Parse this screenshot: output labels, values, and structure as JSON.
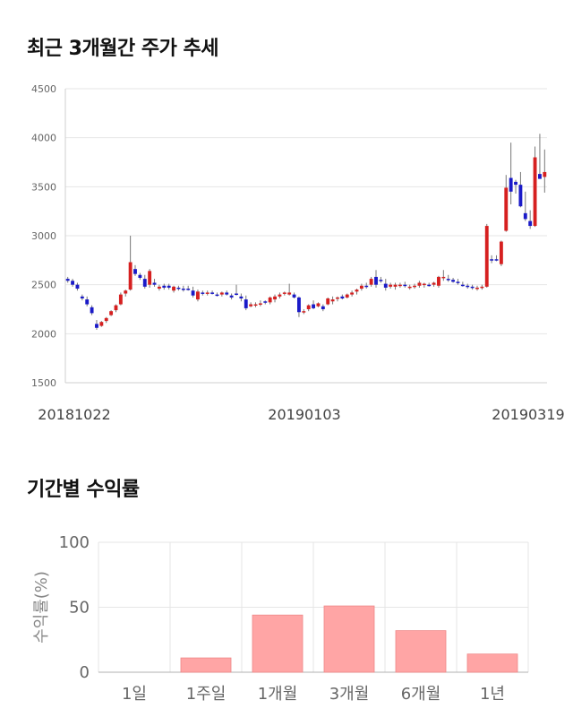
{
  "titles": {
    "price_trend": "최근 3개월간 주가 추세",
    "returns": "기간별 수익률"
  },
  "colors": {
    "up": "#d62020",
    "down": "#1a1ac8",
    "bar": "#ffa5a5",
    "grid": "#e6e6e6"
  },
  "chart_data": [
    {
      "type": "candlestick",
      "title": "최근 3개월간 주가 추세",
      "ylim": [
        1500,
        4500
      ],
      "yticks": [
        1500,
        2000,
        2500,
        3000,
        3500,
        4000,
        4500
      ],
      "x_labels": [
        "20181022",
        "20190103",
        "20190319"
      ],
      "grid": true,
      "candles": [
        [
          2560,
          2580,
          2520,
          2540
        ],
        [
          2540,
          2560,
          2480,
          2500
        ],
        [
          2500,
          2520,
          2440,
          2460
        ],
        [
          2380,
          2400,
          2340,
          2360
        ],
        [
          2350,
          2380,
          2280,
          2300
        ],
        [
          2270,
          2290,
          2190,
          2210
        ],
        [
          2100,
          2140,
          2040,
          2060
        ],
        [
          2080,
          2130,
          2070,
          2120
        ],
        [
          2130,
          2170,
          2110,
          2160
        ],
        [
          2190,
          2240,
          2180,
          2230
        ],
        [
          2240,
          2300,
          2220,
          2290
        ],
        [
          2300,
          2420,
          2290,
          2400
        ],
        [
          2410,
          2450,
          2380,
          2440
        ],
        [
          2450,
          3000,
          2440,
          2730
        ],
        [
          2660,
          2700,
          2590,
          2610
        ],
        [
          2600,
          2620,
          2550,
          2570
        ],
        [
          2560,
          2600,
          2460,
          2480
        ],
        [
          2500,
          2660,
          2470,
          2640
        ],
        [
          2520,
          2560,
          2480,
          2500
        ],
        [
          2460,
          2500,
          2440,
          2480
        ],
        [
          2490,
          2510,
          2450,
          2470
        ],
        [
          2490,
          2510,
          2450,
          2470
        ],
        [
          2440,
          2490,
          2420,
          2480
        ],
        [
          2470,
          2490,
          2440,
          2460
        ],
        [
          2460,
          2490,
          2430,
          2450
        ],
        [
          2460,
          2490,
          2440,
          2450
        ],
        [
          2440,
          2480,
          2370,
          2390
        ],
        [
          2350,
          2450,
          2330,
          2430
        ],
        [
          2420,
          2440,
          2390,
          2410
        ],
        [
          2410,
          2440,
          2390,
          2420
        ],
        [
          2420,
          2440,
          2400,
          2410
        ],
        [
          2400,
          2420,
          2380,
          2390
        ],
        [
          2400,
          2430,
          2380,
          2420
        ],
        [
          2420,
          2440,
          2390,
          2400
        ],
        [
          2390,
          2410,
          2350,
          2370
        ],
        [
          2410,
          2500,
          2390,
          2400
        ],
        [
          2380,
          2410,
          2330,
          2360
        ],
        [
          2350,
          2390,
          2240,
          2260
        ],
        [
          2280,
          2320,
          2270,
          2300
        ],
        [
          2290,
          2320,
          2270,
          2300
        ],
        [
          2300,
          2340,
          2280,
          2310
        ],
        [
          2330,
          2340,
          2300,
          2320
        ],
        [
          2320,
          2380,
          2300,
          2370
        ],
        [
          2350,
          2400,
          2320,
          2380
        ],
        [
          2380,
          2420,
          2360,
          2400
        ],
        [
          2410,
          2430,
          2390,
          2420
        ],
        [
          2400,
          2510,
          2390,
          2420
        ],
        [
          2400,
          2420,
          2360,
          2370
        ],
        [
          2370,
          2380,
          2170,
          2220
        ],
        [
          2220,
          2250,
          2200,
          2230
        ],
        [
          2250,
          2300,
          2230,
          2290
        ],
        [
          2300,
          2340,
          2250,
          2260
        ],
        [
          2280,
          2320,
          2270,
          2310
        ],
        [
          2280,
          2300,
          2230,
          2250
        ],
        [
          2300,
          2370,
          2290,
          2360
        ],
        [
          2330,
          2380,
          2300,
          2350
        ],
        [
          2360,
          2380,
          2330,
          2370
        ],
        [
          2380,
          2400,
          2350,
          2360
        ],
        [
          2370,
          2410,
          2360,
          2400
        ],
        [
          2400,
          2440,
          2380,
          2420
        ],
        [
          2430,
          2460,
          2400,
          2450
        ],
        [
          2460,
          2510,
          2440,
          2490
        ],
        [
          2490,
          2520,
          2460,
          2480
        ],
        [
          2500,
          2580,
          2480,
          2560
        ],
        [
          2580,
          2650,
          2470,
          2500
        ],
        [
          2550,
          2580,
          2520,
          2540
        ],
        [
          2510,
          2560,
          2440,
          2470
        ],
        [
          2480,
          2520,
          2460,
          2500
        ],
        [
          2480,
          2520,
          2450,
          2500
        ],
        [
          2490,
          2520,
          2470,
          2500
        ],
        [
          2500,
          2530,
          2470,
          2490
        ],
        [
          2470,
          2500,
          2450,
          2480
        ],
        [
          2480,
          2510,
          2460,
          2490
        ],
        [
          2490,
          2540,
          2470,
          2520
        ],
        [
          2500,
          2520,
          2470,
          2510
        ],
        [
          2500,
          2520,
          2480,
          2490
        ],
        [
          2500,
          2530,
          2480,
          2520
        ],
        [
          2490,
          2590,
          2470,
          2580
        ],
        [
          2570,
          2650,
          2540,
          2580
        ],
        [
          2560,
          2600,
          2530,
          2550
        ],
        [
          2550,
          2570,
          2520,
          2530
        ],
        [
          2530,
          2560,
          2500,
          2520
        ],
        [
          2500,
          2530,
          2480,
          2490
        ],
        [
          2490,
          2510,
          2460,
          2480
        ],
        [
          2480,
          2500,
          2450,
          2470
        ],
        [
          2460,
          2490,
          2440,
          2470
        ],
        [
          2470,
          2500,
          2450,
          2480
        ],
        [
          2480,
          3120,
          2470,
          3100
        ],
        [
          2760,
          2800,
          2720,
          2750
        ],
        [
          2760,
          2800,
          2740,
          2750
        ],
        [
          2710,
          2950,
          2690,
          2940
        ],
        [
          3050,
          3620,
          3040,
          3490
        ],
        [
          3590,
          3950,
          3320,
          3450
        ],
        [
          3550,
          3570,
          3430,
          3520
        ],
        [
          3520,
          3650,
          3290,
          3300
        ],
        [
          3230,
          3450,
          3150,
          3170
        ],
        [
          3150,
          3260,
          3070,
          3100
        ],
        [
          3100,
          3910,
          3090,
          3800
        ],
        [
          3630,
          4040,
          3580,
          3580
        ],
        [
          3600,
          3880,
          3440,
          3650
        ]
      ]
    },
    {
      "type": "bar",
      "title": "기간별 수익률",
      "ylabel": "수익률(%)",
      "categories": [
        "1일",
        "1주일",
        "1개월",
        "3개월",
        "6개월",
        "1년"
      ],
      "values": [
        0,
        11,
        44,
        51,
        32,
        14
      ],
      "ylim": [
        0,
        100
      ],
      "yticks": [
        0,
        50,
        100
      ],
      "grid": true
    }
  ]
}
